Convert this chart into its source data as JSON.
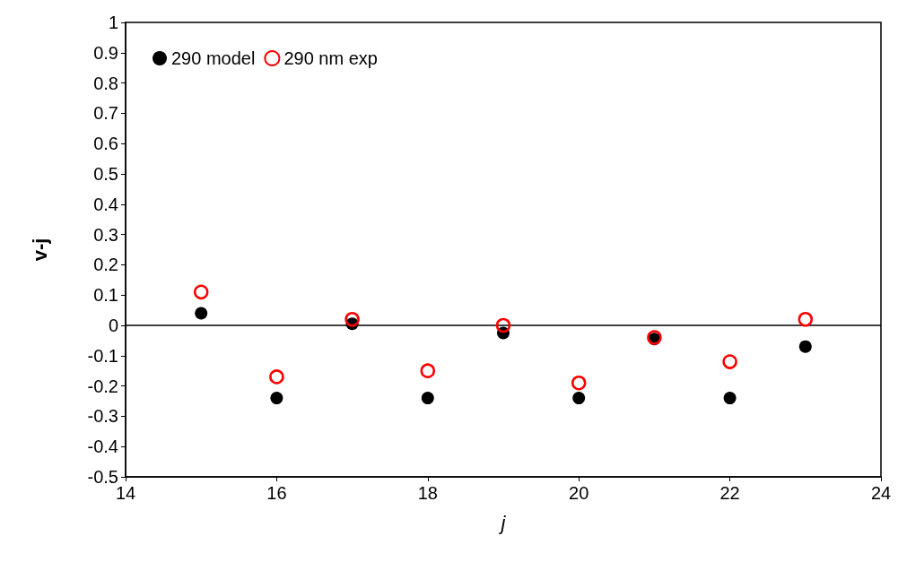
{
  "chart_data": {
    "type": "scatter",
    "xlabel": "j",
    "ylabel": "v-j",
    "xlim": [
      14,
      24
    ],
    "xticks": [
      14,
      16,
      18,
      20,
      22,
      24
    ],
    "ylim": [
      -0.5,
      1
    ],
    "yticks": [
      -0.5,
      -0.4,
      -0.3,
      -0.2,
      -0.1,
      0,
      0.1,
      0.2,
      0.3,
      0.4,
      0.5,
      0.6,
      0.7,
      0.8,
      0.9,
      1
    ],
    "grid": false,
    "legend": "top left",
    "ref_lines": [
      {
        "axis": "y",
        "value": 0,
        "color": "#000000",
        "line_style": "solid"
      }
    ],
    "series": [
      {
        "name": "290 model",
        "color": "#000000",
        "marker": "circle",
        "x": [
          15,
          16,
          17,
          18,
          19,
          20,
          21,
          22,
          23
        ],
        "values": [
          0.04,
          -0.24,
          0.005,
          -0.24,
          -0.025,
          -0.24,
          -0.045,
          -0.24,
          -0.07
        ]
      },
      {
        "name": "290 nm exp",
        "color": "#ff0000",
        "marker": "circle",
        "x": [
          15,
          16,
          17,
          18,
          19,
          20,
          21,
          22,
          23
        ],
        "values": [
          0.11,
          -0.17,
          0.02,
          -0.15,
          0,
          -0.19,
          -0.04,
          -0.12,
          0.02
        ]
      }
    ]
  }
}
